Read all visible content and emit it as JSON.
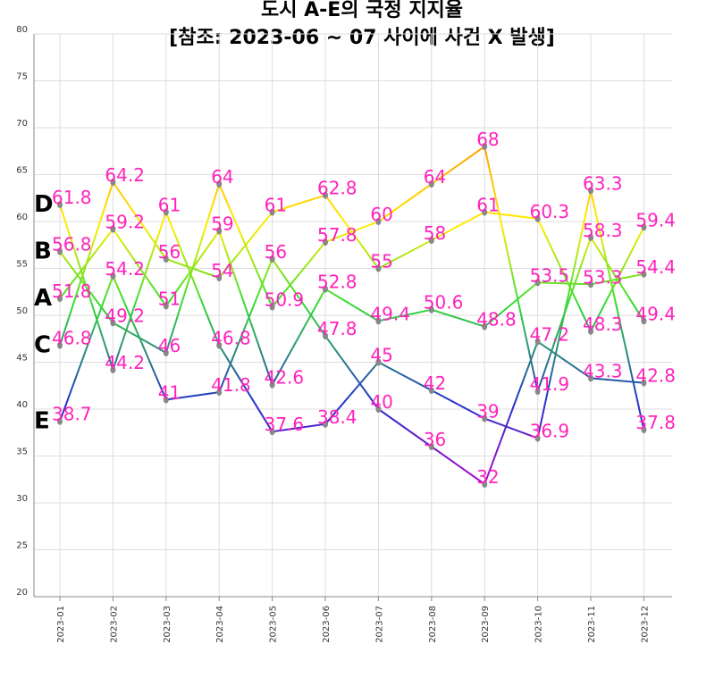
{
  "chart_data": {
    "type": "line",
    "title_line1": "도시 A-E의 국정 지지율",
    "title_line2": "[참조: 2023-06 ~ 07 사이에 사건 X 발생]",
    "categories": [
      "2023-01",
      "2023-02",
      "2023-03",
      "2023-04",
      "2023-05",
      "2023-06",
      "2023-07",
      "2023-08",
      "2023-09",
      "2023-10",
      "2023-11",
      "2023-12"
    ],
    "ylim": [
      20,
      80
    ],
    "yticks": [
      "20",
      "25",
      "30",
      "35",
      "40",
      "45",
      "50",
      "55",
      "60",
      "65",
      "70",
      "75",
      "80"
    ],
    "grid": true,
    "series": [
      {
        "name": "A",
        "values": [
          51.8,
          59.2,
          51,
          59,
          42.6,
          52.8,
          49.4,
          50.6,
          48.8,
          53.5,
          53.3,
          54.4
        ]
      },
      {
        "name": "B",
        "values": [
          56.8,
          49.2,
          46,
          64,
          50.9,
          57.8,
          60,
          64,
          68,
          41.9,
          58.3,
          49.4
        ]
      },
      {
        "name": "C",
        "values": [
          46.8,
          64.2,
          56,
          54,
          61,
          62.8,
          55,
          58,
          61,
          60.3,
          48.3,
          59.4
        ]
      },
      {
        "name": "D",
        "values": [
          61.8,
          44.2,
          61,
          46.8,
          37.6,
          38.4,
          45,
          42,
          39,
          36.9,
          63.3,
          37.8
        ]
      },
      {
        "name": "E",
        "values": [
          38.7,
          54.2,
          41,
          41.8,
          56,
          47.8,
          40,
          36,
          32,
          47.2,
          43.3,
          42.8
        ]
      }
    ]
  }
}
